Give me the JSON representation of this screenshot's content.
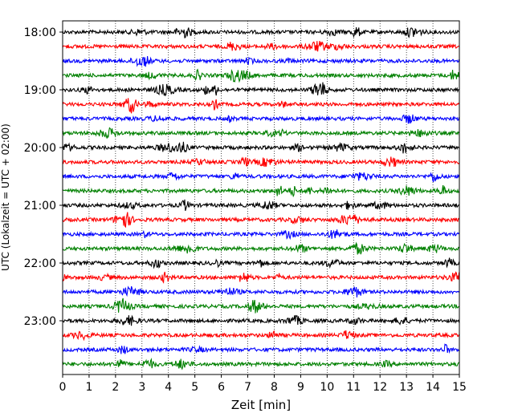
{
  "chart_data": {
    "type": "line",
    "title": "",
    "xlabel": "Zeit  [min]",
    "ylabel": "UTC (Lokalzeit = UTC + 02:00)",
    "xlim": [
      0,
      15
    ],
    "x_ticks": [
      "0",
      "1",
      "2",
      "3",
      "4",
      "5",
      "6",
      "7",
      "8",
      "9",
      "10",
      "11",
      "12",
      "13",
      "14",
      "15"
    ],
    "y_ticks": [
      "18:00",
      "19:00",
      "20:00",
      "21:00",
      "22:00",
      "23:00"
    ],
    "grid": "vertical dotted at each minute",
    "trace_interval_minutes": 15,
    "start": "18:00",
    "trace_count": 24,
    "trace_colors": [
      "#000000",
      "#ff0000",
      "#0000ff",
      "#008000"
    ],
    "series": [
      {
        "start": "18:00",
        "color": "#000000"
      },
      {
        "start": "18:15",
        "color": "#ff0000"
      },
      {
        "start": "18:30",
        "color": "#0000ff"
      },
      {
        "start": "18:45",
        "color": "#008000"
      },
      {
        "start": "19:00",
        "color": "#000000"
      },
      {
        "start": "19:15",
        "color": "#ff0000"
      },
      {
        "start": "19:30",
        "color": "#0000ff"
      },
      {
        "start": "19:45",
        "color": "#008000"
      },
      {
        "start": "20:00",
        "color": "#000000"
      },
      {
        "start": "20:15",
        "color": "#ff0000"
      },
      {
        "start": "20:30",
        "color": "#0000ff"
      },
      {
        "start": "20:45",
        "color": "#008000"
      },
      {
        "start": "21:00",
        "color": "#000000"
      },
      {
        "start": "21:15",
        "color": "#ff0000"
      },
      {
        "start": "21:30",
        "color": "#0000ff"
      },
      {
        "start": "21:45",
        "color": "#008000"
      },
      {
        "start": "22:00",
        "color": "#000000"
      },
      {
        "start": "22:15",
        "color": "#ff0000"
      },
      {
        "start": "22:30",
        "color": "#0000ff"
      },
      {
        "start": "22:45",
        "color": "#008000"
      },
      {
        "start": "23:00",
        "color": "#000000"
      },
      {
        "start": "23:15",
        "color": "#ff0000"
      },
      {
        "start": "23:30",
        "color": "#0000ff"
      },
      {
        "start": "23:45",
        "color": "#008000"
      }
    ]
  }
}
